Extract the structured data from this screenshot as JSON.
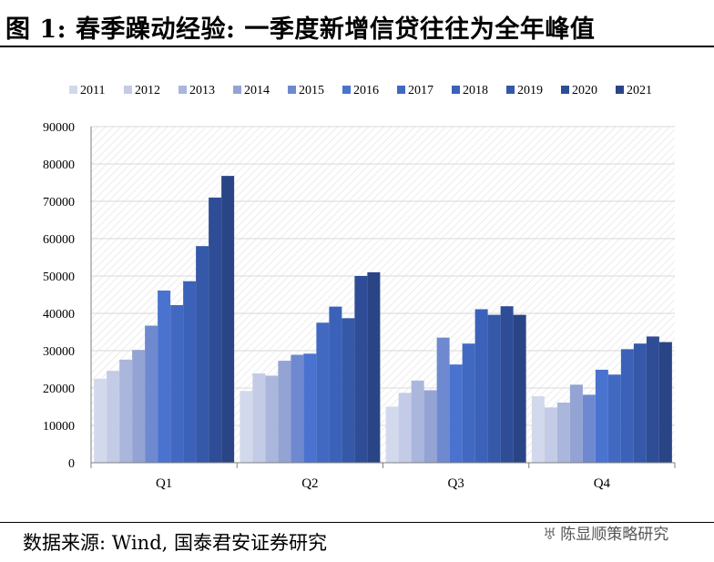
{
  "title": "图 1: 春季躁动经验: 一季度新增信贷往往为全年峰值",
  "source": "数据来源: Wind, 国泰君安证券研究",
  "watermark": {
    "text": "陈显顺策略研究",
    "icon": "wechat-icon"
  },
  "chart_data": {
    "type": "bar",
    "categories": [
      "Q1",
      "Q2",
      "Q3",
      "Q4"
    ],
    "ylim": [
      0,
      90000
    ],
    "yticks": [
      0,
      10000,
      20000,
      30000,
      40000,
      50000,
      60000,
      70000,
      80000,
      90000
    ],
    "grid": true,
    "legend_position": "top",
    "series": [
      {
        "name": "2011",
        "color": "#d3d9ec",
        "values": [
          22500,
          19200,
          15000,
          17800
        ]
      },
      {
        "name": "2012",
        "color": "#c3cbe6",
        "values": [
          24600,
          23900,
          18700,
          14800
        ]
      },
      {
        "name": "2013",
        "color": "#aab6dc",
        "values": [
          27600,
          23300,
          22000,
          16100
        ]
      },
      {
        "name": "2014",
        "color": "#93a3d3",
        "values": [
          30200,
          27300,
          19400,
          20900
        ]
      },
      {
        "name": "2015",
        "color": "#6e89cf",
        "values": [
          36700,
          28900,
          33500,
          18200
        ]
      },
      {
        "name": "2016",
        "color": "#4a73d0",
        "values": [
          46100,
          29200,
          26300,
          24900
        ]
      },
      {
        "name": "2017",
        "color": "#4269c2",
        "values": [
          42200,
          37500,
          31900,
          23600
        ]
      },
      {
        "name": "2018",
        "color": "#3b62b8",
        "values": [
          48600,
          41800,
          41100,
          30400
        ]
      },
      {
        "name": "2019",
        "color": "#3558a8",
        "values": [
          58000,
          38700,
          39600,
          31900
        ]
      },
      {
        "name": "2020",
        "color": "#2f4d96",
        "values": [
          71000,
          50000,
          41900,
          33800
        ]
      },
      {
        "name": "2021",
        "color": "#2a4585",
        "values": [
          76800,
          51000,
          39600,
          32300
        ]
      }
    ]
  }
}
